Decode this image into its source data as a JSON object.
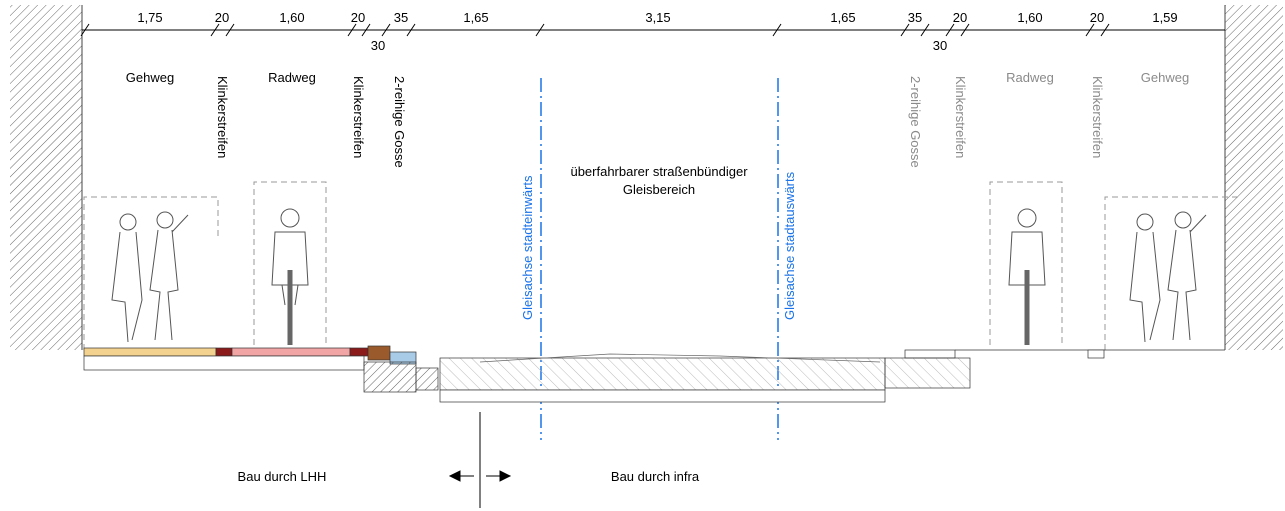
{
  "dimensions": [
    "1,75",
    "20",
    "1,60",
    "20",
    "35",
    "30",
    "1,65",
    "3,15",
    "1,65",
    "35",
    "30",
    "20",
    "1,60",
    "20",
    "1,59"
  ],
  "left_labels": [
    "Gehweg",
    "Klinkerstreifen",
    "Radweg",
    "Klinkerstreifen",
    "2-reihige Gosse"
  ],
  "axes": [
    "Gleisachse stadteinwärts",
    "Gleisachse stadtauswärts"
  ],
  "track_area": [
    "überfahrbarer straßenbündiger",
    "Gleisbereich"
  ],
  "right_labels": [
    "2-reihige Gosse",
    "Klinkerstreifen",
    "Radweg",
    "Klinkerstreifen",
    "Gehweg"
  ],
  "construction": [
    "Bau durch LHH",
    "Bau durch infra"
  ]
}
